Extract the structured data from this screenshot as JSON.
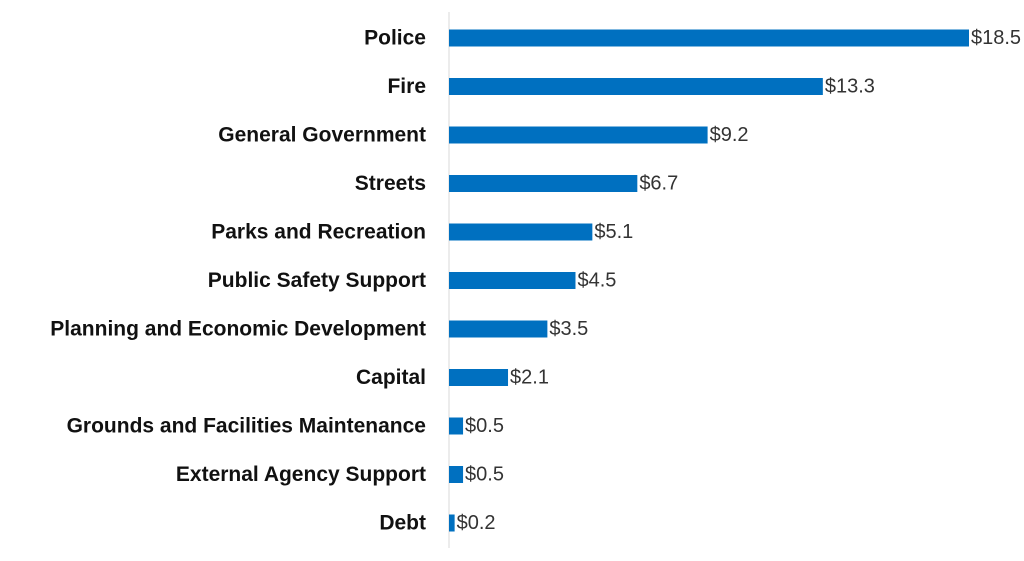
{
  "chart_data": {
    "type": "bar",
    "orientation": "horizontal",
    "categories": [
      "Police",
      "Fire",
      "General Government",
      "Streets",
      "Parks and Recreation",
      "Public Safety Support",
      "Planning and Economic Development",
      "Capital",
      "Grounds and Facilities Maintenance",
      "External Agency Support",
      "Debt"
    ],
    "values": [
      18.5,
      13.3,
      9.2,
      6.7,
      5.1,
      4.5,
      3.5,
      2.1,
      0.5,
      0.5,
      0.2
    ],
    "value_labels": [
      "$18.5",
      "$13.3",
      "$9.2",
      "$6.7",
      "$5.1",
      "$4.5",
      "$3.5",
      "$2.1",
      "$0.5",
      "$0.5",
      "$0.2"
    ],
    "xlim": [
      0,
      18.5
    ],
    "grid": false,
    "colors": {
      "bar": "#0070c0",
      "axis": "#d9d9d9"
    }
  }
}
